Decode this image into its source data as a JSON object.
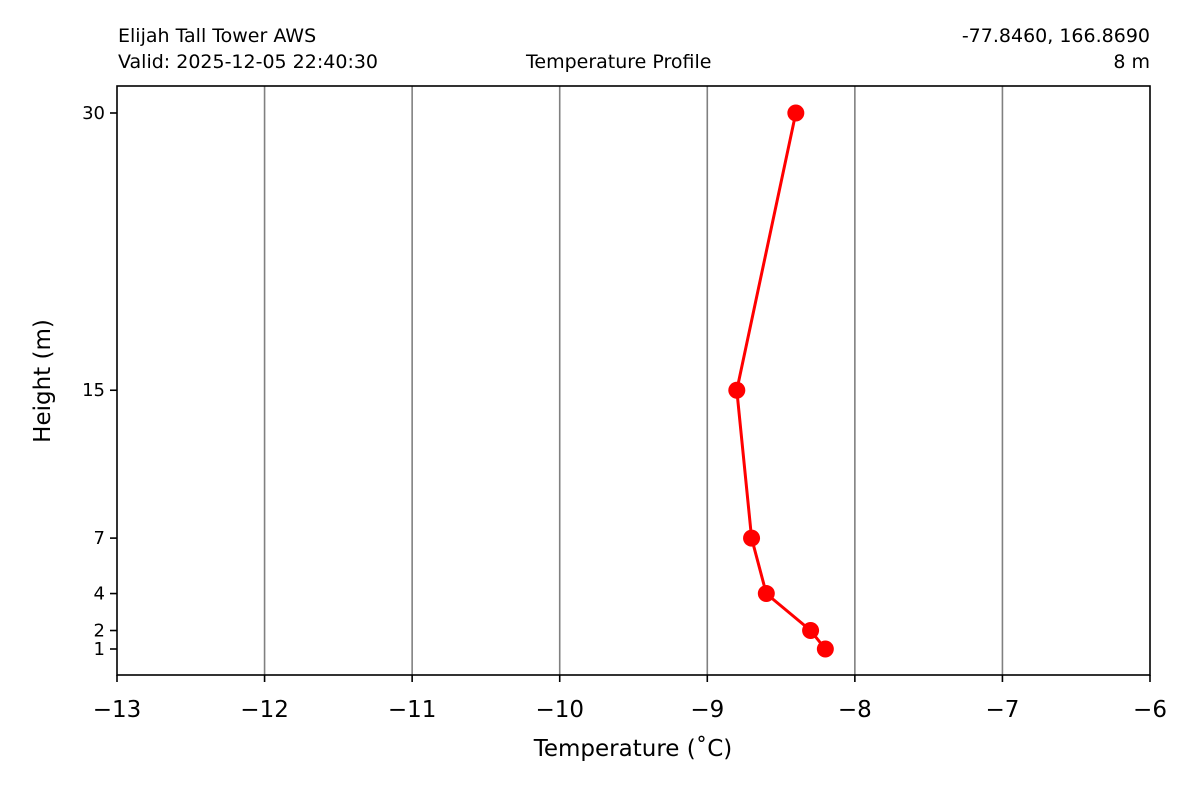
{
  "header": {
    "station": "Elijah Tall Tower AWS",
    "valid": "Valid: 2025-12-05 22:40:30",
    "title": "Temperature Profile",
    "coords": "-77.8460, 166.8690",
    "elevation": "8 m"
  },
  "chart_data": {
    "type": "line",
    "title": "Temperature Profile",
    "xlabel": "Temperature (˚C)",
    "ylabel": "Height (m)",
    "xlim": [
      -13,
      -6
    ],
    "x_ticks": [
      -13,
      -12,
      -11,
      -10,
      -9,
      -8,
      -7,
      -6
    ],
    "x_tick_labels": [
      "−13",
      "−12",
      "−11",
      "−10",
      "−9",
      "−8",
      "−7",
      "−6"
    ],
    "y_ticks": [
      1,
      2,
      4,
      7,
      15,
      30
    ],
    "y_tick_labels": [
      "1",
      "2",
      "4",
      "7",
      "15",
      "30"
    ],
    "grid": "vertical",
    "series_color": "#ff0000",
    "series": [
      {
        "points": [
          {
            "height": 1,
            "temp": -8.2
          },
          {
            "height": 2,
            "temp": -8.3
          },
          {
            "height": 4,
            "temp": -8.6
          },
          {
            "height": 7,
            "temp": -8.7
          },
          {
            "height": 15,
            "temp": -8.8
          },
          {
            "height": 30,
            "temp": -8.4
          }
        ]
      }
    ]
  }
}
